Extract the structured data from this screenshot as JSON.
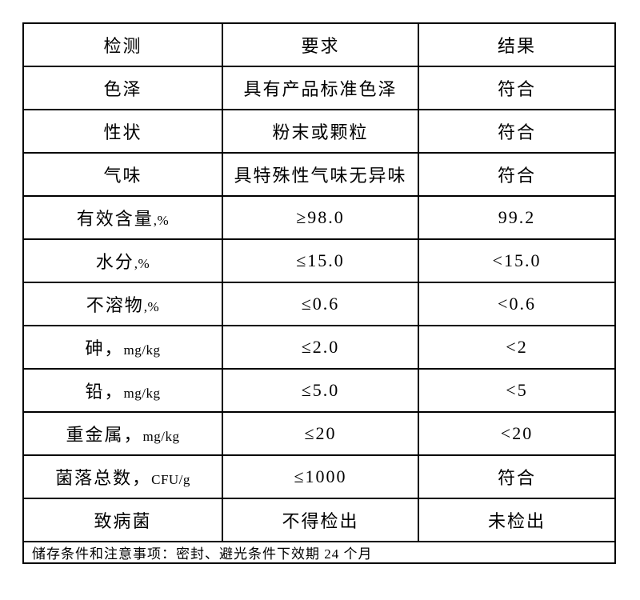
{
  "colors": {
    "background": "#ffffff",
    "border": "#000000",
    "text": "#000000"
  },
  "table": {
    "headers": [
      "检测",
      "要求",
      "结果"
    ],
    "rows": [
      {
        "item_zh": "色泽",
        "item_unit": "",
        "requirement": "具有产品标准色泽",
        "result": "符合"
      },
      {
        "item_zh": "性状",
        "item_unit": "",
        "requirement": "粉末或颗粒",
        "result": "符合"
      },
      {
        "item_zh": "气味",
        "item_unit": "",
        "requirement": "具特殊性气味无异味",
        "result": "符合"
      },
      {
        "item_zh": "有效含量",
        "item_unit": ",%",
        "requirement": "≥98.0",
        "result": "99.2"
      },
      {
        "item_zh": "水分",
        "item_unit": ",%",
        "requirement": "≤15.0",
        "result": "<15.0"
      },
      {
        "item_zh": "不溶物",
        "item_unit": ",%",
        "requirement": "≤0.6",
        "result": "<0.6"
      },
      {
        "item_zh": "砷，",
        "item_unit": "mg/kg",
        "requirement": "≤2.0",
        "result": "<2"
      },
      {
        "item_zh": "铅，",
        "item_unit": "mg/kg",
        "requirement": "≤5.0",
        "result": "<5"
      },
      {
        "item_zh": "重金属，",
        "item_unit": "mg/kg",
        "requirement": "≤20",
        "result": "<20"
      },
      {
        "item_zh": "菌落总数，",
        "item_unit": "CFU/g",
        "requirement": "≤1000",
        "result": "符合"
      },
      {
        "item_zh": "致病菌",
        "item_unit": "",
        "requirement": "不得检出",
        "result": "未检出"
      }
    ],
    "footer": "储存条件和注意事项：密封、避光条件下效期 24 个月"
  }
}
